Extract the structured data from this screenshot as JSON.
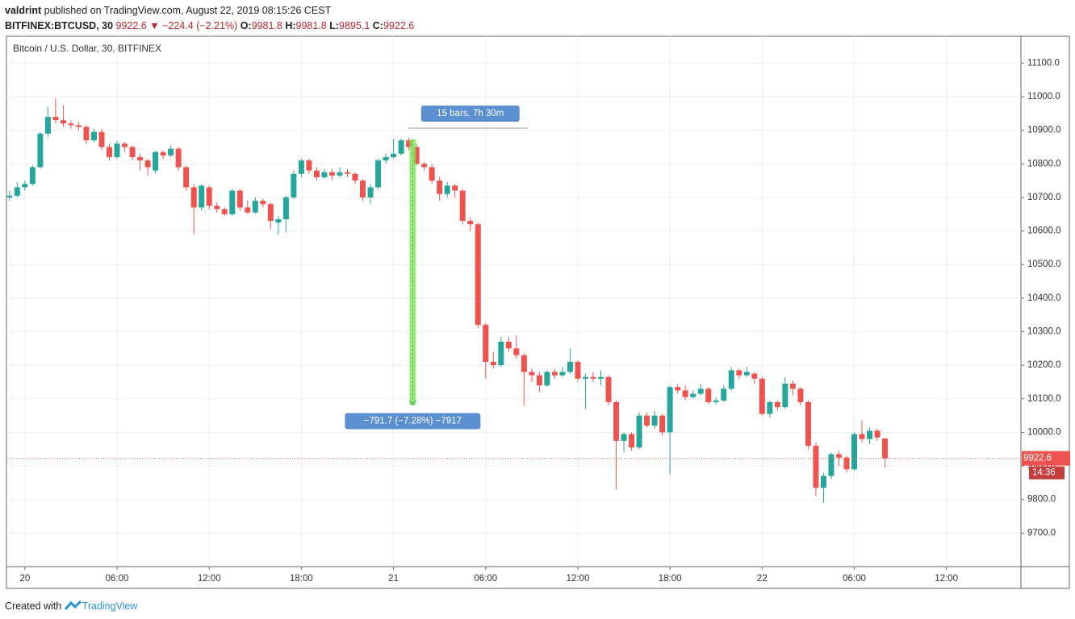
{
  "header": {
    "user": "valdrint",
    "published": "published on TradingView.com, August 22, 2019 08:15:26 CEST",
    "symbol": "BITFINEX:BTCUSD, 30",
    "last": "9922.6",
    "change": "▼ −224.4 (−2.21%)",
    "o_label": "O:",
    "o_value": "9981.8",
    "h_label": "H:",
    "h_value": "9981.8",
    "l_label": "L:",
    "l_value": "9895.1",
    "c_label": "C:",
    "c_value": "9922.6"
  },
  "footer": {
    "created": "Created with",
    "brand": "TradingView"
  },
  "chart_data": {
    "type": "candlestick",
    "title": "Bitcoin / U.S. Dollar, 30, BITFINEX",
    "x": [
      -1,
      -0.5,
      0,
      0.5,
      1,
      1.5,
      2,
      2.5,
      3,
      3.5,
      4,
      4.5,
      5,
      5.5,
      6,
      6.5,
      7,
      7.5,
      8,
      8.5,
      9,
      9.5,
      10,
      10.5,
      11,
      11.5,
      12,
      12.5,
      13,
      13.5,
      14,
      14.5,
      15,
      15.5,
      16,
      16.5,
      17,
      17.5,
      18,
      18.5,
      19,
      19.5,
      20,
      20.5,
      21,
      21.5,
      22,
      22.5,
      23,
      23.5,
      24,
      24.5,
      25,
      25.5,
      26,
      26.5,
      27,
      27.5,
      28,
      28.5,
      29,
      29.5,
      30,
      30.5,
      31,
      31.5,
      32,
      32.5,
      33,
      33.5,
      34,
      34.5,
      35,
      35.5,
      36,
      36.5,
      37,
      37.5,
      38,
      38.5,
      39,
      39.5,
      40,
      40.5,
      41,
      41.5,
      42,
      42.5,
      43,
      43.5,
      44,
      44.5,
      45,
      45.5,
      46,
      46.5,
      47,
      47.5,
      48,
      48.5,
      49,
      49.5,
      50,
      50.5,
      51,
      51.5,
      52,
      52.5,
      53,
      53.5,
      54,
      54.5,
      55,
      55.5,
      56
    ],
    "open": [
      10700,
      10705,
      10730,
      10740,
      10790,
      10890,
      10940,
      10930,
      10920,
      10915,
      10910,
      10870,
      10895,
      10850,
      10820,
      10860,
      10850,
      10820,
      10810,
      10780,
      10835,
      10825,
      10845,
      10790,
      10730,
      10670,
      10730,
      10675,
      10665,
      10650,
      10720,
      10670,
      10655,
      10690,
      10680,
      10625,
      10635,
      10700,
      10770,
      10810,
      10780,
      10760,
      10775,
      10765,
      10775,
      10770,
      10750,
      10700,
      10730,
      10810,
      10820,
      10830,
      10870,
      10850,
      10800,
      10790,
      10750,
      10710,
      10735,
      10720,
      10630,
      10620,
      10320,
      10210,
      10200,
      10270,
      10250,
      10230,
      10180,
      10170,
      10140,
      10180,
      10170,
      10180,
      10210,
      10160,
      10165,
      10160,
      10165,
      10090,
      9975,
      9995,
      9955,
      10050,
      10020,
      10050,
      10000,
      10135,
      10125,
      10105,
      10115,
      10130,
      10090,
      10095,
      10130,
      10185,
      10170,
      10175,
      10160,
      10055,
      10090,
      10075,
      10145,
      10130,
      10090,
      9960,
      9835,
      9870,
      9935,
      9925,
      9890,
      9995,
      9980,
      10005,
      9981.8
    ],
    "high": [
      10720,
      10745,
      10750,
      10795,
      10895,
      10970,
      10995,
      10975,
      10930,
      10925,
      10915,
      10905,
      10905,
      10860,
      10870,
      10865,
      10855,
      10830,
      10815,
      10840,
      10840,
      10855,
      10850,
      10795,
      10740,
      10740,
      10735,
      10685,
      10670,
      10725,
      10725,
      10690,
      10700,
      10695,
      10685,
      10645,
      10705,
      10780,
      10815,
      10815,
      10790,
      10785,
      10785,
      10790,
      10785,
      10775,
      10755,
      10740,
      10815,
      10830,
      10875,
      10875,
      10878,
      10860,
      10805,
      10800,
      10760,
      10745,
      10740,
      10725,
      10640,
      10625,
      10325,
      10240,
      10285,
      10285,
      10290,
      10235,
      10190,
      10180,
      10185,
      10190,
      10195,
      10250,
      10215,
      10175,
      10180,
      10185,
      10170,
      10095,
      10000,
      10000,
      10060,
      10060,
      10065,
      10055,
      10140,
      10145,
      10140,
      10125,
      10145,
      10135,
      10105,
      10140,
      10195,
      10190,
      10195,
      10180,
      10165,
      10095,
      10095,
      10165,
      10155,
      10135,
      10095,
      9970,
      9880,
      9940,
      9945,
      9930,
      10000,
      10035,
      10015,
      10010,
      9981.8
    ],
    "low": [
      10690,
      10700,
      10720,
      10735,
      10785,
      10880,
      10920,
      10910,
      10905,
      10900,
      10860,
      10865,
      10840,
      10810,
      10815,
      10835,
      10810,
      10780,
      10765,
      10770,
      10815,
      10820,
      10780,
      10720,
      10590,
      10660,
      10665,
      10655,
      10645,
      10645,
      10660,
      10650,
      10650,
      10670,
      10605,
      10590,
      10595,
      10695,
      10760,
      10770,
      10750,
      10755,
      10750,
      10760,
      10760,
      10740,
      10690,
      10680,
      10725,
      10800,
      10815,
      10825,
      10840,
      10795,
      10780,
      10740,
      10690,
      10700,
      10700,
      10620,
      10600,
      10310,
      10160,
      10190,
      10195,
      10240,
      10220,
      10080,
      10150,
      10120,
      10135,
      10160,
      10165,
      10175,
      10150,
      10070,
      10150,
      10140,
      10080,
      9830,
      9940,
      9945,
      9950,
      10015,
      10010,
      9990,
      9875,
      10115,
      10095,
      10100,
      10110,
      10085,
      10085,
      10090,
      10125,
      10160,
      10165,
      10145,
      10050,
      10045,
      10065,
      10070,
      10110,
      10080,
      9950,
      9810,
      9790,
      9860,
      9900,
      9880,
      9885,
      9970,
      9965,
      9975,
      9895.1
    ],
    "close": [
      10705,
      10730,
      10740,
      10790,
      10890,
      10940,
      10930,
      10920,
      10915,
      10910,
      10870,
      10895,
      10850,
      10820,
      10860,
      10850,
      10820,
      10810,
      10790,
      10835,
      10825,
      10845,
      10790,
      10730,
      10670,
      10735,
      10675,
      10665,
      10650,
      10720,
      10670,
      10655,
      10690,
      10680,
      10630,
      10635,
      10700,
      10770,
      10810,
      10780,
      10760,
      10775,
      10765,
      10775,
      10770,
      10750,
      10700,
      10730,
      10810,
      10820,
      10830,
      10870,
      10850,
      10800,
      10790,
      10750,
      10710,
      10735,
      10720,
      10630,
      10620,
      10320,
      10210,
      10200,
      10270,
      10250,
      10230,
      10180,
      10170,
      10140,
      10180,
      10170,
      10180,
      10210,
      10160,
      10165,
      10160,
      10165,
      10090,
      9975,
      9995,
      9955,
      10050,
      10020,
      10050,
      10000,
      10135,
      10125,
      10105,
      10115,
      10130,
      10090,
      10095,
      10130,
      10185,
      10170,
      10180,
      10160,
      10055,
      10090,
      10075,
      10145,
      10130,
      10090,
      9960,
      9835,
      9870,
      9935,
      9925,
      9890,
      9995,
      9980,
      10005,
      9985,
      9922.6
    ],
    "up_color": "#26a69a",
    "down_color": "#ef5350",
    "xlim": [
      -1.2,
      64.85
    ],
    "ylim": [
      9600,
      11180
    ],
    "xticks": [
      {
        "value": 0,
        "label": "20"
      },
      {
        "value": 6,
        "label": "06:00"
      },
      {
        "value": 12,
        "label": "12:00"
      },
      {
        "value": 18,
        "label": "18:00"
      },
      {
        "value": 24,
        "label": "21"
      },
      {
        "value": 30,
        "label": "06:00"
      },
      {
        "value": 36,
        "label": "12:00"
      },
      {
        "value": 42,
        "label": "18:00"
      },
      {
        "value": 48,
        "label": "22"
      },
      {
        "value": 54,
        "label": "06:00"
      },
      {
        "value": 60,
        "label": "12:00"
      }
    ],
    "yticks": [
      {
        "value": 9700,
        "label": "9700.0"
      },
      {
        "value": 9800,
        "label": "9800.0"
      },
      {
        "value": 9900,
        "label": "9900.0"
      },
      {
        "value": 10000,
        "label": "10000.0"
      },
      {
        "value": 10100,
        "label": "10100.0"
      },
      {
        "value": 10200,
        "label": "10200.0"
      },
      {
        "value": 10300,
        "label": "10300.0"
      },
      {
        "value": 10400,
        "label": "10400.0"
      },
      {
        "value": 10500,
        "label": "10500.0"
      },
      {
        "value": 10600,
        "label": "10600.0"
      },
      {
        "value": 10700,
        "label": "10700.0"
      },
      {
        "value": 10800,
        "label": "10800.0"
      },
      {
        "value": 10900,
        "label": "10900.0"
      },
      {
        "value": 11000,
        "label": "11000.0"
      },
      {
        "value": 11100,
        "label": "11100.0"
      }
    ],
    "grid": true,
    "last_price": {
      "value": 9922.6,
      "label": "9922.6",
      "countdown": "14:36"
    },
    "measure": {
      "start_x": 25.25,
      "start_price": 10873,
      "end_price": 10081.3,
      "range_end_x": 32.75,
      "bars_label": "15 bars, 7h 30m",
      "change_label": "−791.7 (−7.28%) −7917"
    }
  }
}
